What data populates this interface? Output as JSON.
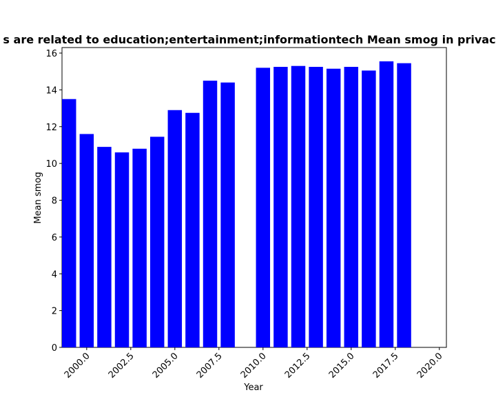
{
  "chart_data": {
    "type": "bar",
    "title": "s are related to education;entertainment;informationtech Mean smog in privac",
    "xlabel": "Year",
    "ylabel": "Mean smog",
    "xlim": [
      1998.6,
      2020.4
    ],
    "ylim": [
      0,
      16.3
    ],
    "x_ticks": [
      2000.0,
      2002.5,
      2005.0,
      2007.5,
      2010.0,
      2012.5,
      2015.0,
      2017.5,
      2020.0
    ],
    "x_tick_labels": [
      "2000.0",
      "2002.5",
      "2005.0",
      "2007.5",
      "2010.0",
      "2012.5",
      "2015.0",
      "2017.5",
      "2020.0"
    ],
    "y_ticks": [
      0,
      2,
      4,
      6,
      8,
      10,
      12,
      14,
      16
    ],
    "y_tick_labels": [
      "0",
      "2",
      "4",
      "6",
      "8",
      "10",
      "12",
      "14",
      "16"
    ],
    "grid": false,
    "bar_width": 0.8,
    "bar_color": "#0000ff",
    "x": [
      1999,
      2000,
      2001,
      2002,
      2003,
      2004,
      2005,
      2006,
      2007,
      2008,
      2010,
      2011,
      2012,
      2013,
      2014,
      2015,
      2016,
      2017,
      2018
    ],
    "values": [
      13.5,
      11.6,
      10.9,
      10.6,
      10.8,
      11.45,
      12.9,
      12.75,
      14.5,
      14.4,
      15.2,
      15.25,
      15.3,
      15.25,
      15.15,
      15.25,
      15.05,
      15.55,
      15.45
    ]
  }
}
